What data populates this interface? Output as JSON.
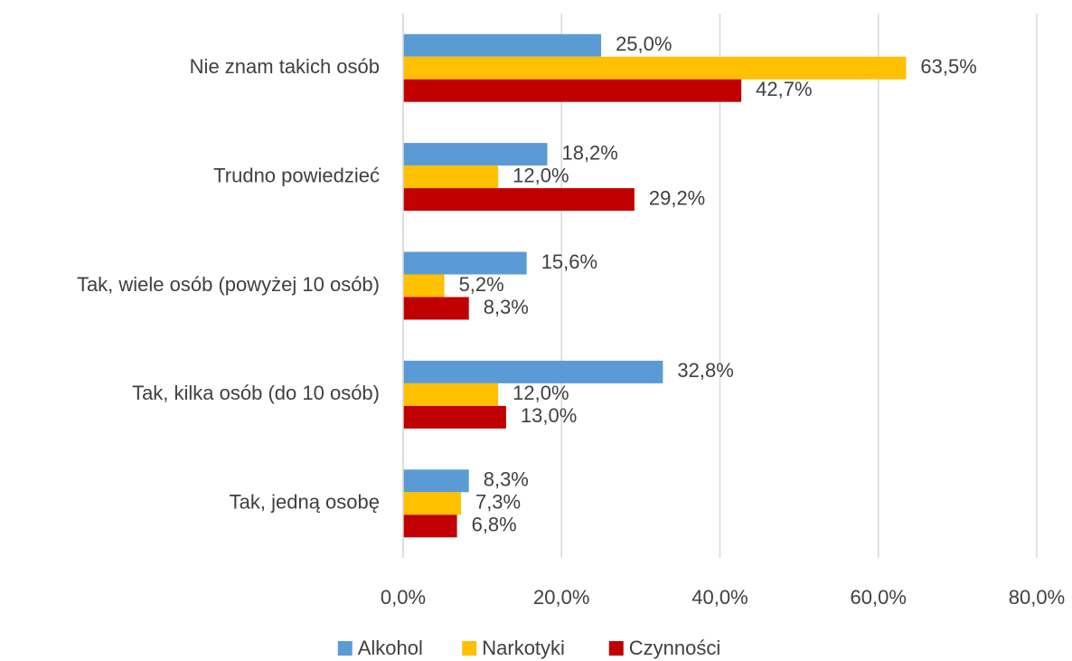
{
  "chart_data": {
    "type": "barh",
    "categories": [
      "Nie znam takich osób",
      "Trudno powiedzieć",
      "Tak, wiele osób (powyżej 10 osób)",
      "Tak, kilka osób (do 10 osób)",
      "Tak, jedną osobę"
    ],
    "series": [
      {
        "name": "Alkohol",
        "color": "#5b9bd5",
        "values": [
          25.0,
          18.2,
          15.6,
          32.8,
          8.3
        ],
        "value_labels": [
          "25,0%",
          "18,2%",
          "15,6%",
          "32,8%",
          "8,3%"
        ]
      },
      {
        "name": "Narkotyki",
        "color": "#ffc000",
        "values": [
          63.5,
          12.0,
          5.2,
          12.0,
          7.3
        ],
        "value_labels": [
          "63,5%",
          "12,0%",
          "5,2%",
          "12,0%",
          "7,3%"
        ]
      },
      {
        "name": "Czynności",
        "color": "#c00000",
        "values": [
          42.7,
          29.2,
          8.3,
          13.0,
          6.8
        ],
        "value_labels": [
          "42,7%",
          "29,2%",
          "8,3%",
          "13,0%",
          "6,8%"
        ]
      }
    ],
    "xlim": [
      0,
      80
    ],
    "xticks": [
      {
        "value": 0,
        "label": "0,0%"
      },
      {
        "value": 20,
        "label": "20,0%"
      },
      {
        "value": 40,
        "label": "40,0%"
      },
      {
        "value": 60,
        "label": "60,0%"
      },
      {
        "value": 80,
        "label": "80,0%"
      }
    ],
    "grid": true,
    "legend": "bottom"
  }
}
